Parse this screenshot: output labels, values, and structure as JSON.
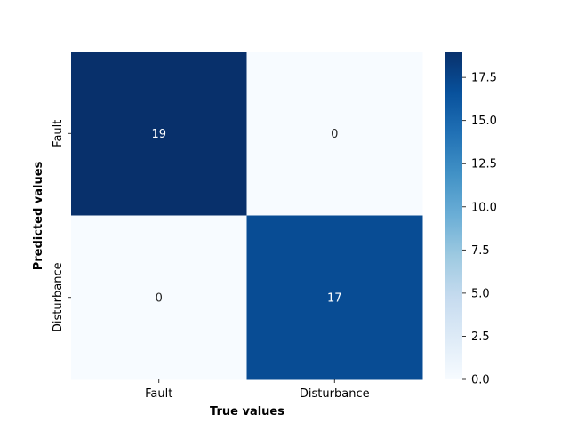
{
  "chart_data": {
    "type": "heatmap",
    "title": "",
    "xlabel": "True values",
    "ylabel": "Predicted values",
    "x_categories": [
      "Fault",
      "Disturbance"
    ],
    "y_categories": [
      "Fault",
      "Disturbance"
    ],
    "values": [
      [
        19,
        0
      ],
      [
        0,
        17
      ]
    ],
    "colormap": "Blues",
    "colorbar": {
      "range": [
        0,
        19
      ],
      "ticks": [
        0.0,
        2.5,
        5.0,
        7.5,
        10.0,
        12.5,
        15.0,
        17.5
      ],
      "tick_labels": [
        "0.0",
        "2.5",
        "5.0",
        "7.5",
        "10.0",
        "12.5",
        "15.0",
        "17.5"
      ]
    },
    "annotation_colors": {
      "on_dark": "#ffffff",
      "on_light": "#262626"
    }
  }
}
